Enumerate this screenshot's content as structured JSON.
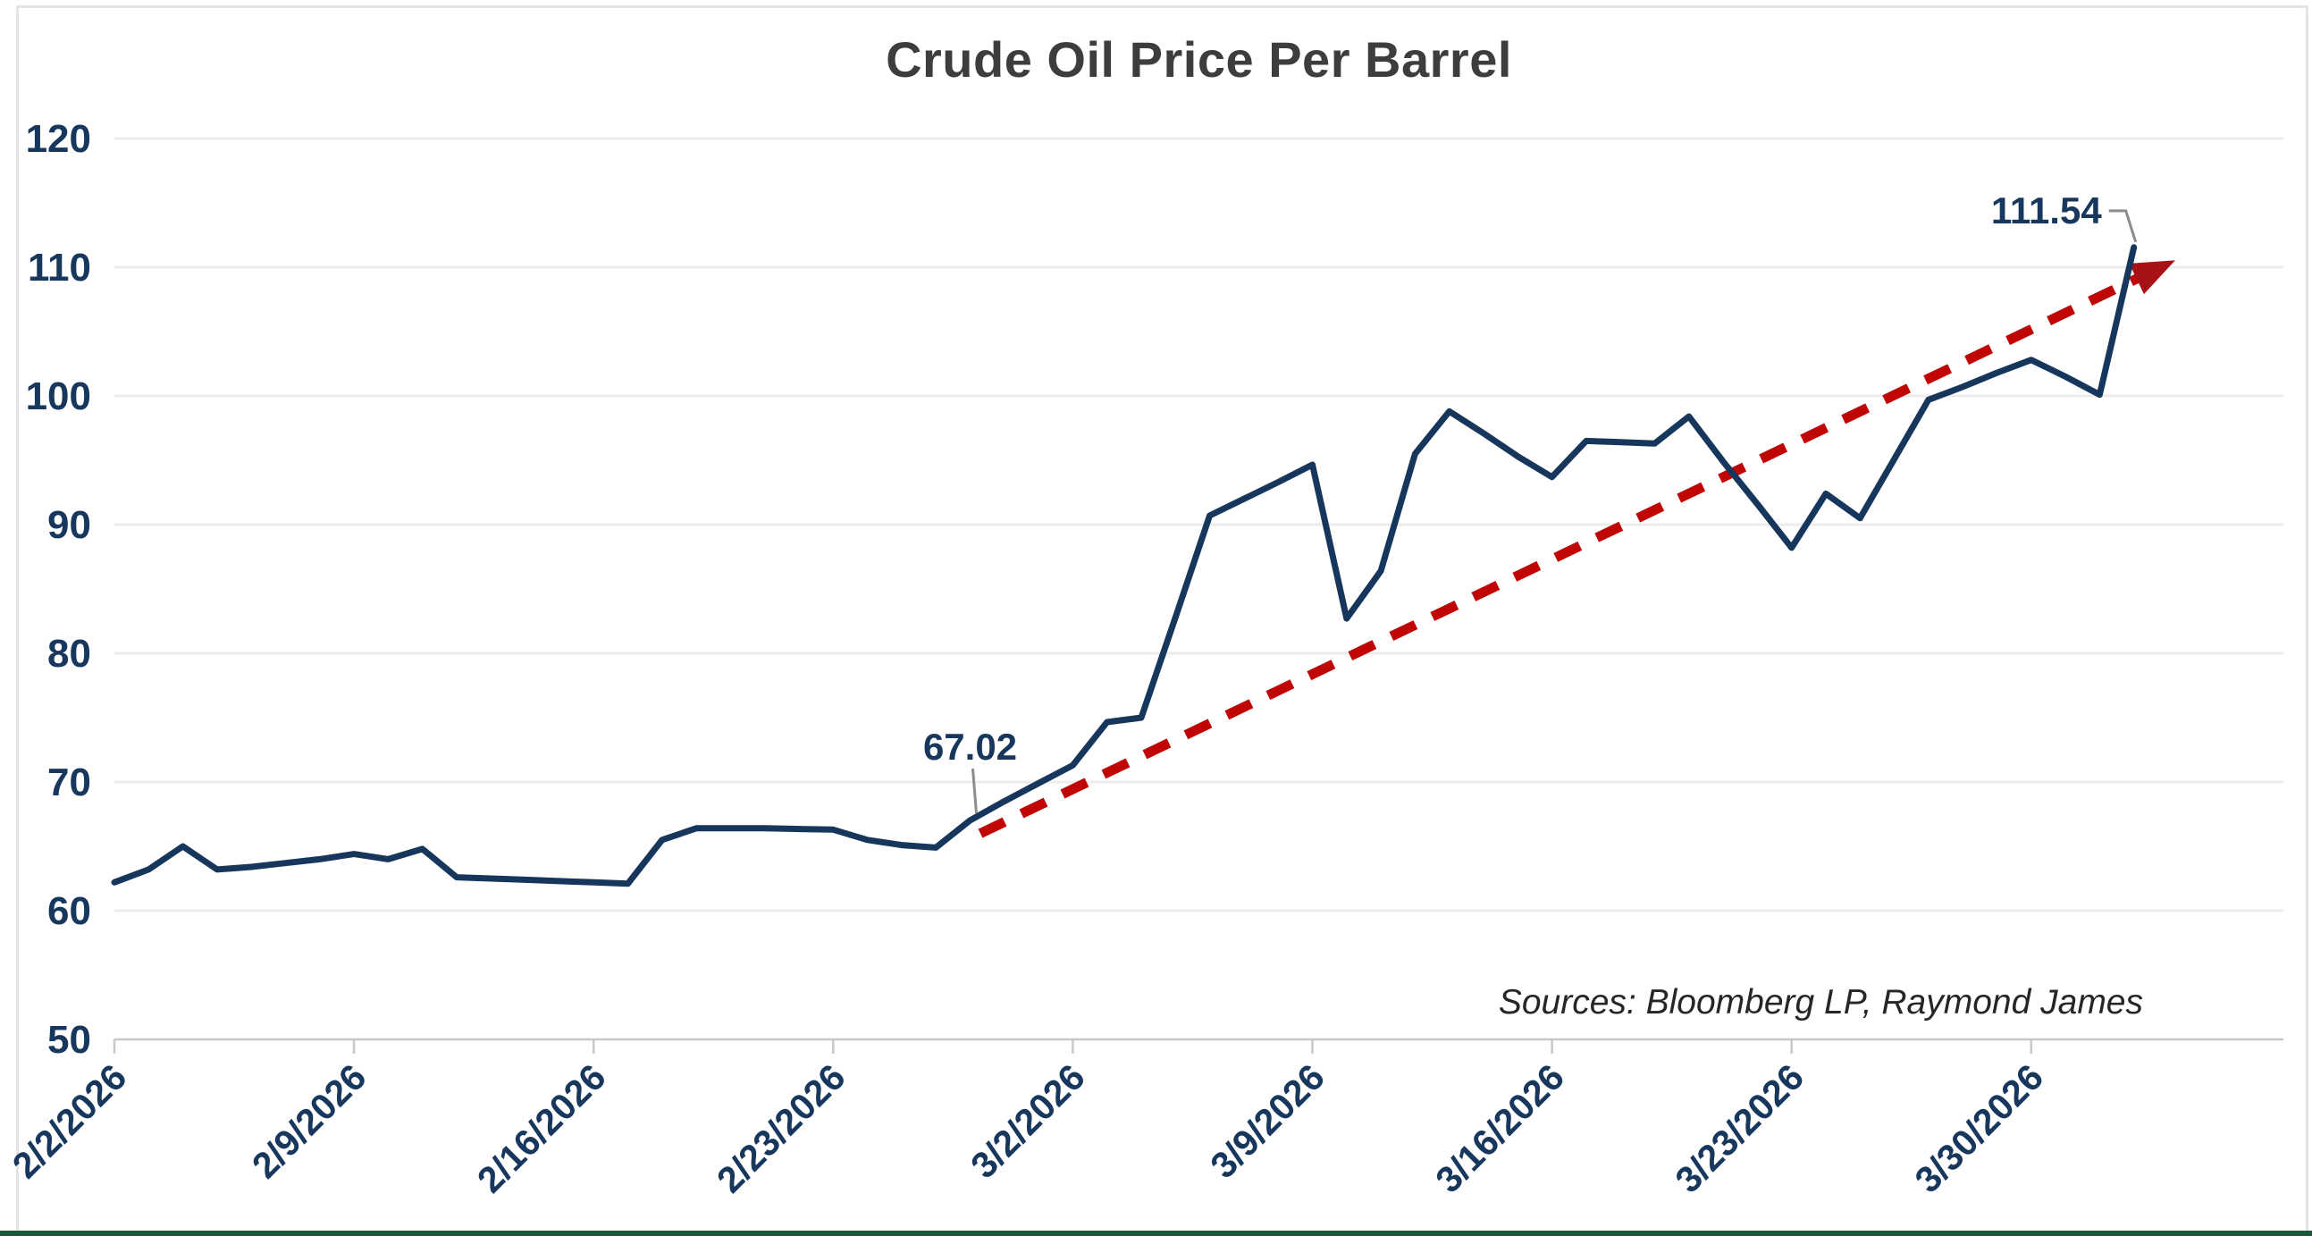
{
  "colors": {
    "background": "#ffffff",
    "title": "#3d3d3d",
    "axis_label": "#17375d",
    "gridline": "#ececec",
    "axis_line": "#c8c8c8",
    "leader": "#8c8c8c",
    "source_text": "#262626",
    "panel_border": "#e4e4e4",
    "bottom_bar": "#18593c"
  },
  "chart_data": {
    "type": "line",
    "title": "Crude Oil Price Per Barrel",
    "source_note": "Sources: Bloomberg LP, Raymond James",
    "xlabel": "",
    "ylabel": "",
    "ylim": [
      50,
      120
    ],
    "grid": true,
    "legend_position": "none",
    "y_ticks": [
      "120",
      "110",
      "100",
      "90",
      "80",
      "70",
      "60",
      "50"
    ],
    "x_tick_labels": [
      "2/2/2026",
      "2/9/2026",
      "2/16/2026",
      "2/23/2026",
      "3/2/2026",
      "3/9/2026",
      "3/16/2026",
      "3/23/2026",
      "3/30/2026"
    ],
    "x_tick_indices": [
      0,
      7,
      14,
      21,
      28,
      35,
      42,
      49,
      56
    ],
    "series": [
      {
        "name": "Crude Oil Price Per Barrel",
        "color": "#16365c",
        "dates": [
          "2/2/2026",
          "2/3/2026",
          "2/4/2026",
          "2/5/2026",
          "2/6/2026",
          "2/7/2026",
          "2/8/2026",
          "2/9/2026",
          "2/10/2026",
          "2/11/2026",
          "2/12/2026",
          "2/13/2026",
          "2/14/2026",
          "2/15/2026",
          "2/16/2026",
          "2/17/2026",
          "2/18/2026",
          "2/19/2026",
          "2/20/2026",
          "2/21/2026",
          "2/22/2026",
          "2/23/2026",
          "2/24/2026",
          "2/25/2026",
          "2/26/2026",
          "2/27/2026",
          "2/28/2026",
          "3/1/2026",
          "3/2/2026",
          "3/3/2026",
          "3/4/2026",
          "3/5/2026",
          "3/6/2026",
          "3/7/2026",
          "3/8/2026",
          "3/9/2026",
          "3/10/2026",
          "3/11/2026",
          "3/12/2026",
          "3/13/2026",
          "3/14/2026",
          "3/15/2026",
          "3/16/2026",
          "3/17/2026",
          "3/18/2026",
          "3/19/2026",
          "3/20/2026",
          "3/21/2026",
          "3/22/2026",
          "3/23/2026",
          "3/24/2026",
          "3/25/2026",
          "3/26/2026",
          "3/27/2026",
          "3/28/2026",
          "3/29/2026",
          "3/30/2026",
          "3/31/2026",
          "4/1/2026",
          "4/2/2026"
        ],
        "values": [
          62.2,
          63.2,
          65.0,
          63.2,
          63.4,
          63.7,
          64.0,
          64.4,
          64.0,
          64.8,
          62.6,
          62.5,
          62.4,
          62.3,
          62.2,
          62.1,
          65.5,
          66.4,
          66.4,
          66.4,
          66.35,
          66.3,
          65.5,
          65.1,
          64.9,
          67.02,
          68.5,
          69.9,
          71.3,
          74.65,
          75.0,
          82.8,
          90.7,
          92.0,
          93.3,
          94.65,
          82.7,
          86.4,
          95.5,
          98.8,
          97.1,
          95.3,
          93.7,
          96.5,
          96.4,
          96.3,
          98.4,
          94.9,
          91.6,
          88.2,
          92.4,
          90.5,
          95.1,
          99.7,
          100.7,
          101.8,
          102.8,
          101.5,
          100.1,
          111.54
        ]
      }
    ],
    "annotations": [
      {
        "label": "67.02",
        "x_index": 25,
        "value": 67.02,
        "placement": "above-left"
      },
      {
        "label": "111.54",
        "x_index": 59,
        "value": 111.54,
        "placement": "callout-left-elbow"
      }
    ],
    "trendline": {
      "style": "dashed",
      "color": "#c00505",
      "arrow_color": "#a81216",
      "from_x_index": 25.3,
      "from_value": 66.0,
      "to_x_index": 59.55,
      "to_value": 109.7
    }
  }
}
